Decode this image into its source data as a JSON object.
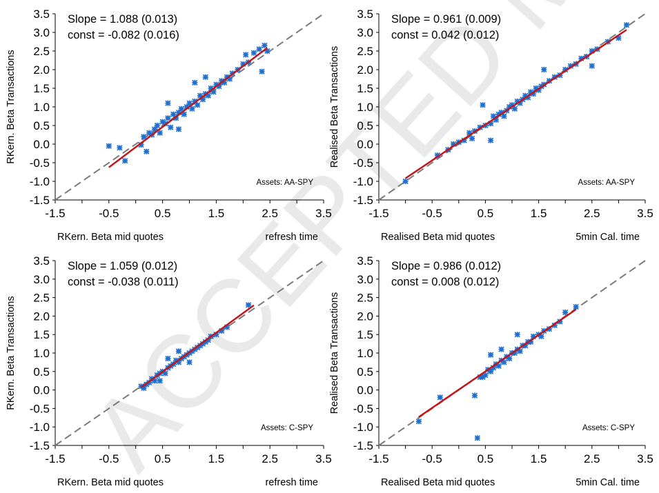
{
  "watermark": {
    "text": "ACCEPTED MANUSCRIPT",
    "color": "#e9e9e9"
  },
  "colors": {
    "points": "#1f6fd1",
    "fit_line": "#c0171c",
    "diagonal": "#7a7a7a",
    "axis": "#000000"
  },
  "chart_data": [
    {
      "type": "scatter",
      "ylabel": "RKern. Beta Transactions",
      "xlabel": "RKern. Beta mid quotes",
      "xlabel_right": "refresh time",
      "annotation": {
        "slope": "Slope = 1.088 (0.013)",
        "const": "const = -0.082 (0.016)",
        "assets": "Assets: AA-SPY"
      },
      "xlim": [
        -1.5,
        3.5
      ],
      "ylim": [
        -1.5,
        3.5
      ],
      "xticks": [
        "-1.5",
        "-0.5",
        "0.5",
        "1.5",
        "2.5",
        "3.5"
      ],
      "yticks": [
        "-1.5",
        "-1.0",
        "-0.5",
        "0.0",
        "0.5",
        "1.0",
        "1.5",
        "2.0",
        "2.5",
        "3.0",
        "3.5"
      ],
      "fit": {
        "slope": 1.088,
        "intercept": -0.082,
        "x_range": [
          -0.5,
          2.45
        ]
      },
      "diagonal": true,
      "points": [
        [
          -0.5,
          -0.05
        ],
        [
          -0.3,
          -0.1
        ],
        [
          -0.2,
          -0.45
        ],
        [
          0.1,
          -0.02
        ],
        [
          0.15,
          0.2
        ],
        [
          0.2,
          -0.2
        ],
        [
          0.25,
          0.3
        ],
        [
          0.3,
          0.25
        ],
        [
          0.35,
          0.4
        ],
        [
          0.4,
          0.5
        ],
        [
          0.45,
          0.3
        ],
        [
          0.5,
          0.6
        ],
        [
          0.55,
          0.55
        ],
        [
          0.6,
          0.7
        ],
        [
          0.65,
          0.45
        ],
        [
          0.7,
          0.8
        ],
        [
          0.75,
          0.7
        ],
        [
          0.8,
          0.85
        ],
        [
          0.85,
          0.95
        ],
        [
          0.9,
          0.8
        ],
        [
          0.95,
          1.0
        ],
        [
          1.0,
          1.1
        ],
        [
          1.05,
          0.95
        ],
        [
          1.1,
          1.15
        ],
        [
          1.15,
          1.05
        ],
        [
          1.2,
          1.3
        ],
        [
          1.25,
          1.2
        ],
        [
          1.3,
          1.35
        ],
        [
          1.35,
          1.3
        ],
        [
          1.4,
          1.5
        ],
        [
          1.45,
          1.4
        ],
        [
          1.5,
          1.6
        ],
        [
          1.55,
          1.55
        ],
        [
          1.6,
          1.7
        ],
        [
          1.65,
          1.65
        ],
        [
          1.7,
          1.8
        ],
        [
          1.75,
          1.75
        ],
        [
          1.8,
          1.9
        ],
        [
          1.9,
          2.0
        ],
        [
          2.0,
          2.15
        ],
        [
          2.05,
          2.4
        ],
        [
          2.1,
          2.2
        ],
        [
          2.2,
          2.45
        ],
        [
          2.3,
          2.55
        ],
        [
          2.4,
          2.65
        ],
        [
          2.45,
          2.5
        ],
        [
          2.35,
          1.95
        ],
        [
          1.1,
          1.65
        ],
        [
          1.3,
          1.8
        ],
        [
          0.6,
          1.1
        ],
        [
          0.8,
          0.4
        ]
      ]
    },
    {
      "type": "scatter",
      "ylabel": "Realised Beta Transactions",
      "xlabel": "Realised Beta mid quotes",
      "xlabel_right": "5min Cal. time",
      "annotation": {
        "slope": "Slope = 0.961 (0.009)",
        "const": "const = 0.042 (0.012)",
        "assets": "Assets: AA-SPY"
      },
      "xlim": [
        -1.5,
        3.5
      ],
      "ylim": [
        -1.5,
        3.5
      ],
      "xticks": [
        "-1.5",
        "-0.5",
        "0.5",
        "1.5",
        "2.5",
        "3.5"
      ],
      "yticks": [
        "-1.5",
        "-1.0",
        "-0.5",
        "0.0",
        "0.5",
        "1.0",
        "1.5",
        "2.0",
        "2.5",
        "3.0",
        "3.5"
      ],
      "fit": {
        "slope": 0.961,
        "intercept": 0.042,
        "x_range": [
          -1.0,
          3.15
        ]
      },
      "diagonal": true,
      "points": [
        [
          -1.0,
          -1.0
        ],
        [
          -0.4,
          -0.3
        ],
        [
          -0.2,
          -0.15
        ],
        [
          -0.1,
          0.0
        ],
        [
          0.0,
          0.05
        ],
        [
          0.1,
          0.1
        ],
        [
          0.2,
          0.3
        ],
        [
          0.25,
          0.15
        ],
        [
          0.3,
          0.35
        ],
        [
          0.4,
          0.45
        ],
        [
          0.45,
          1.05
        ],
        [
          0.5,
          0.5
        ],
        [
          0.6,
          0.55
        ],
        [
          0.65,
          0.75
        ],
        [
          0.7,
          0.65
        ],
        [
          0.75,
          0.8
        ],
        [
          0.8,
          0.85
        ],
        [
          0.85,
          0.75
        ],
        [
          0.9,
          0.9
        ],
        [
          0.95,
          1.0
        ],
        [
          1.0,
          1.05
        ],
        [
          1.05,
          0.95
        ],
        [
          1.1,
          1.15
        ],
        [
          1.15,
          1.1
        ],
        [
          1.2,
          1.2
        ],
        [
          1.25,
          1.3
        ],
        [
          1.3,
          1.25
        ],
        [
          1.35,
          1.4
        ],
        [
          1.4,
          1.35
        ],
        [
          1.45,
          1.5
        ],
        [
          1.5,
          1.45
        ],
        [
          1.55,
          1.55
        ],
        [
          1.6,
          1.6
        ],
        [
          1.7,
          1.7
        ],
        [
          1.8,
          1.8
        ],
        [
          1.9,
          1.85
        ],
        [
          2.0,
          2.0
        ],
        [
          2.1,
          2.1
        ],
        [
          2.2,
          2.15
        ],
        [
          2.3,
          2.3
        ],
        [
          2.4,
          2.35
        ],
        [
          2.5,
          2.5
        ],
        [
          2.6,
          2.55
        ],
        [
          2.8,
          2.75
        ],
        [
          3.0,
          2.85
        ],
        [
          3.15,
          3.2
        ],
        [
          2.5,
          2.1
        ],
        [
          0.6,
          0.1
        ],
        [
          1.6,
          2.0
        ]
      ]
    },
    {
      "type": "scatter",
      "ylabel": "RKern. Beta Transactions",
      "xlabel": "RKern. Beta mid quotes",
      "xlabel_right": "refresh time",
      "annotation": {
        "slope": "Slope = 1.059 (0.012)",
        "const": "const = -0.038 (0.011)",
        "assets": "Assets: C-SPY"
      },
      "xlim": [
        -1.5,
        3.5
      ],
      "ylim": [
        -1.5,
        3.5
      ],
      "xticks": [
        "-1.5",
        "-0.5",
        "0.5",
        "1.5",
        "2.5",
        "3.5"
      ],
      "yticks": [
        "-1.5",
        "-1.0",
        "-0.5",
        "0.0",
        "0.5",
        "1.0",
        "1.5",
        "2.0",
        "2.5",
        "3.0",
        "3.5"
      ],
      "fit": {
        "slope": 1.059,
        "intercept": -0.038,
        "x_range": [
          0.1,
          2.2
        ]
      },
      "diagonal": true,
      "points": [
        [
          0.1,
          0.1
        ],
        [
          0.15,
          0.05
        ],
        [
          0.2,
          0.15
        ],
        [
          0.25,
          0.2
        ],
        [
          0.3,
          0.3
        ],
        [
          0.35,
          0.25
        ],
        [
          0.4,
          0.4
        ],
        [
          0.45,
          0.45
        ],
        [
          0.5,
          0.5
        ],
        [
          0.55,
          0.45
        ],
        [
          0.6,
          0.6
        ],
        [
          0.65,
          0.65
        ],
        [
          0.7,
          0.7
        ],
        [
          0.75,
          0.8
        ],
        [
          0.8,
          0.75
        ],
        [
          0.85,
          0.85
        ],
        [
          0.9,
          0.9
        ],
        [
          0.95,
          0.95
        ],
        [
          1.0,
          1.0
        ],
        [
          1.05,
          1.05
        ],
        [
          1.1,
          1.1
        ],
        [
          1.15,
          1.15
        ],
        [
          1.2,
          1.2
        ],
        [
          1.25,
          1.25
        ],
        [
          1.3,
          1.3
        ],
        [
          1.35,
          1.35
        ],
        [
          1.4,
          1.45
        ],
        [
          1.5,
          1.5
        ],
        [
          1.6,
          1.6
        ],
        [
          1.7,
          1.7
        ],
        [
          2.1,
          2.3
        ],
        [
          0.6,
          0.85
        ],
        [
          0.8,
          1.05
        ],
        [
          1.0,
          0.75
        ],
        [
          0.45,
          0.25
        ]
      ]
    },
    {
      "type": "scatter",
      "ylabel": "Realised Beta Transactions",
      "xlabel": "Realised Beta mid quotes",
      "xlabel_right": "5min Cal. time",
      "annotation": {
        "slope": "Slope = 0.986 (0.012)",
        "const": "const = 0.008 (0.012)",
        "assets": "Assets: C-SPY"
      },
      "xlim": [
        -1.5,
        3.5
      ],
      "ylim": [
        -1.5,
        3.5
      ],
      "xticks": [
        "-1.5",
        "-0.5",
        "0.5",
        "1.5",
        "2.5",
        "3.5"
      ],
      "yticks": [
        "-1.5",
        "-1.0",
        "-0.5",
        "0.0",
        "0.5",
        "1.0",
        "1.5",
        "2.0",
        "2.5",
        "3.0",
        "3.5"
      ],
      "fit": {
        "slope": 0.986,
        "intercept": 0.008,
        "x_range": [
          -0.75,
          2.2
        ]
      },
      "diagonal": true,
      "points": [
        [
          -0.75,
          -0.85
        ],
        [
          -0.35,
          -0.2
        ],
        [
          0.3,
          -0.15
        ],
        [
          0.35,
          -1.3
        ],
        [
          0.4,
          0.35
        ],
        [
          0.45,
          0.35
        ],
        [
          0.5,
          0.4
        ],
        [
          0.55,
          0.55
        ],
        [
          0.6,
          0.5
        ],
        [
          0.65,
          0.6
        ],
        [
          0.7,
          0.7
        ],
        [
          0.75,
          0.65
        ],
        [
          0.8,
          0.8
        ],
        [
          0.85,
          0.75
        ],
        [
          0.9,
          0.9
        ],
        [
          0.95,
          0.85
        ],
        [
          1.0,
          1.0
        ],
        [
          1.05,
          1.0
        ],
        [
          1.1,
          1.1
        ],
        [
          1.15,
          1.05
        ],
        [
          1.2,
          1.2
        ],
        [
          1.25,
          1.2
        ],
        [
          1.3,
          1.3
        ],
        [
          1.35,
          1.3
        ],
        [
          1.4,
          1.45
        ],
        [
          1.5,
          1.5
        ],
        [
          1.55,
          1.45
        ],
        [
          1.6,
          1.6
        ],
        [
          1.7,
          1.65
        ],
        [
          1.8,
          1.75
        ],
        [
          1.9,
          1.85
        ],
        [
          2.0,
          2.1
        ],
        [
          2.2,
          2.25
        ],
        [
          0.6,
          0.95
        ],
        [
          0.8,
          1.1
        ],
        [
          1.1,
          1.5
        ]
      ]
    }
  ]
}
